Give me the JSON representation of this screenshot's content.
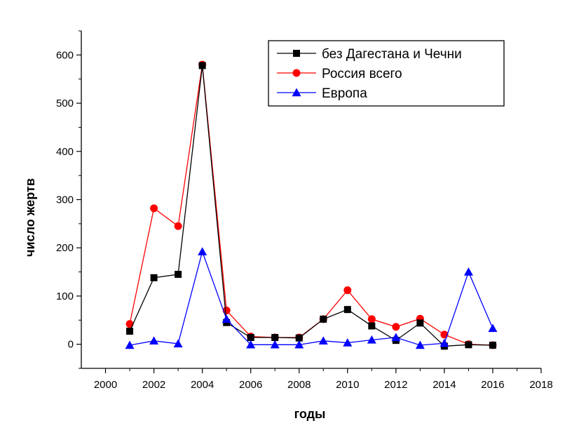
{
  "chart_data": {
    "type": "line",
    "xlabel": "годы",
    "ylabel": "число жертв",
    "xlim": [
      1999,
      2018
    ],
    "ylim": [
      -50,
      650
    ],
    "xticks": [
      2000,
      2002,
      2004,
      2006,
      2008,
      2010,
      2012,
      2014,
      2016,
      2018
    ],
    "yticks": [
      0,
      100,
      200,
      300,
      400,
      500,
      600
    ],
    "grid": false,
    "legend_position": "top-right",
    "x": [
      2001,
      2002,
      2003,
      2004,
      2005,
      2006,
      2007,
      2008,
      2009,
      2010,
      2011,
      2012,
      2013,
      2014,
      2015,
      2016
    ],
    "series": [
      {
        "name": "без Дагестана и Чечни",
        "color": "#000000",
        "line_color": "#000000",
        "marker": "square",
        "values": [
          27,
          138,
          145,
          578,
          45,
          14,
          14,
          13,
          52,
          72,
          38,
          8,
          44,
          -4,
          -1,
          -2
        ]
      },
      {
        "name": "Россия всего",
        "color": "#ff0000",
        "line_color": "#ff0000",
        "marker": "circle",
        "values": [
          42,
          282,
          245,
          580,
          70,
          16,
          14,
          14,
          52,
          112,
          52,
          36,
          53,
          20,
          0,
          -2
        ]
      },
      {
        "name": "Европа",
        "color": "#0000ff",
        "line_color": "#0000ff",
        "marker": "triangle",
        "values": [
          -2,
          7,
          1,
          192,
          52,
          -1,
          -1,
          -1,
          7,
          3,
          9,
          14,
          -2,
          2,
          150,
          33
        ]
      }
    ]
  }
}
